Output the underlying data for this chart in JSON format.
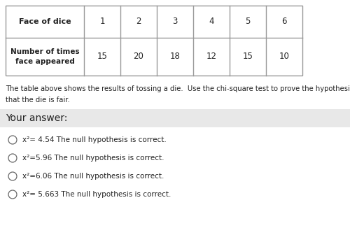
{
  "table_header": [
    "Face of dice",
    "1",
    "2",
    "3",
    "4",
    "5",
    "6"
  ],
  "table_row_label": "Number of times\nface appeared",
  "table_row_values": [
    "15",
    "20",
    "18",
    "12",
    "15",
    "10"
  ],
  "description_line1": "The table above shows the results of tossing a die.  Use the chi-square test to prove the hypothesis",
  "description_line2": "that the die is fair.",
  "your_answer_label": "Your answer:",
  "options": [
    "x²= 4.54 The null hypothesis is correct.",
    "x²=5.96 The null hypothesis is correct.",
    "x²=6.06 The null hypothesis is correct.",
    "x²= 5.663 The null hypothesis is correct."
  ],
  "bg_color": "#ffffff",
  "answer_section_bg": "#e8e8e8",
  "table_border_color": "#999999",
  "text_color": "#222222",
  "fig_width": 5.0,
  "fig_height": 3.26,
  "dpi": 100
}
